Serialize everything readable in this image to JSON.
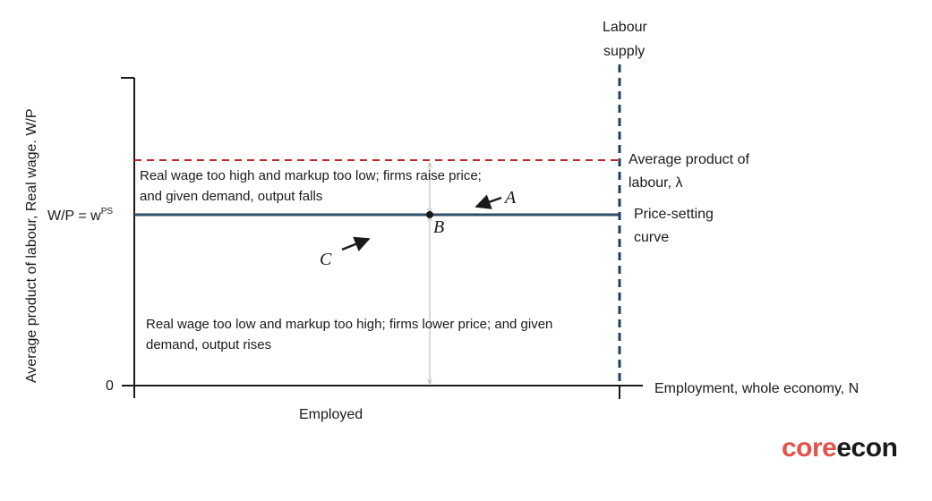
{
  "labels": {
    "y_axis": "Average  product of labour, Real wage. W/P",
    "x_axis": "Employment, whole economy, N",
    "zero": "0",
    "wps_main": "W/P = w",
    "wps_sup": "PS",
    "employed": "Employed",
    "labour_supply_1": "Labour",
    "labour_supply_2": "supply",
    "apl_1": "Average  product of",
    "apl_2": "labour, λ",
    "psc_1": "Price-setting",
    "psc_2": "curve"
  },
  "annotations": {
    "above_1": "Real wage too high and markup too low; firms raise price;",
    "above_2": "and given demand, output falls",
    "below_1": "Real wage too low and markup too high; firms lower price; and given",
    "below_2": "demand, output rises"
  },
  "points": {
    "a": "A",
    "b": "B",
    "c": "C"
  },
  "logo": {
    "part1": "core",
    "part2": "econ"
  },
  "colors": {
    "price_setting_curve": "#2e4e6a",
    "average_product": "#c0282a",
    "labour_supply": "#1f3f5f",
    "axis": "#1a1a1a",
    "double_arrow": "#b0b0b0",
    "logo_core": "#e4504a",
    "logo_econ": "#1a1a1a"
  }
}
